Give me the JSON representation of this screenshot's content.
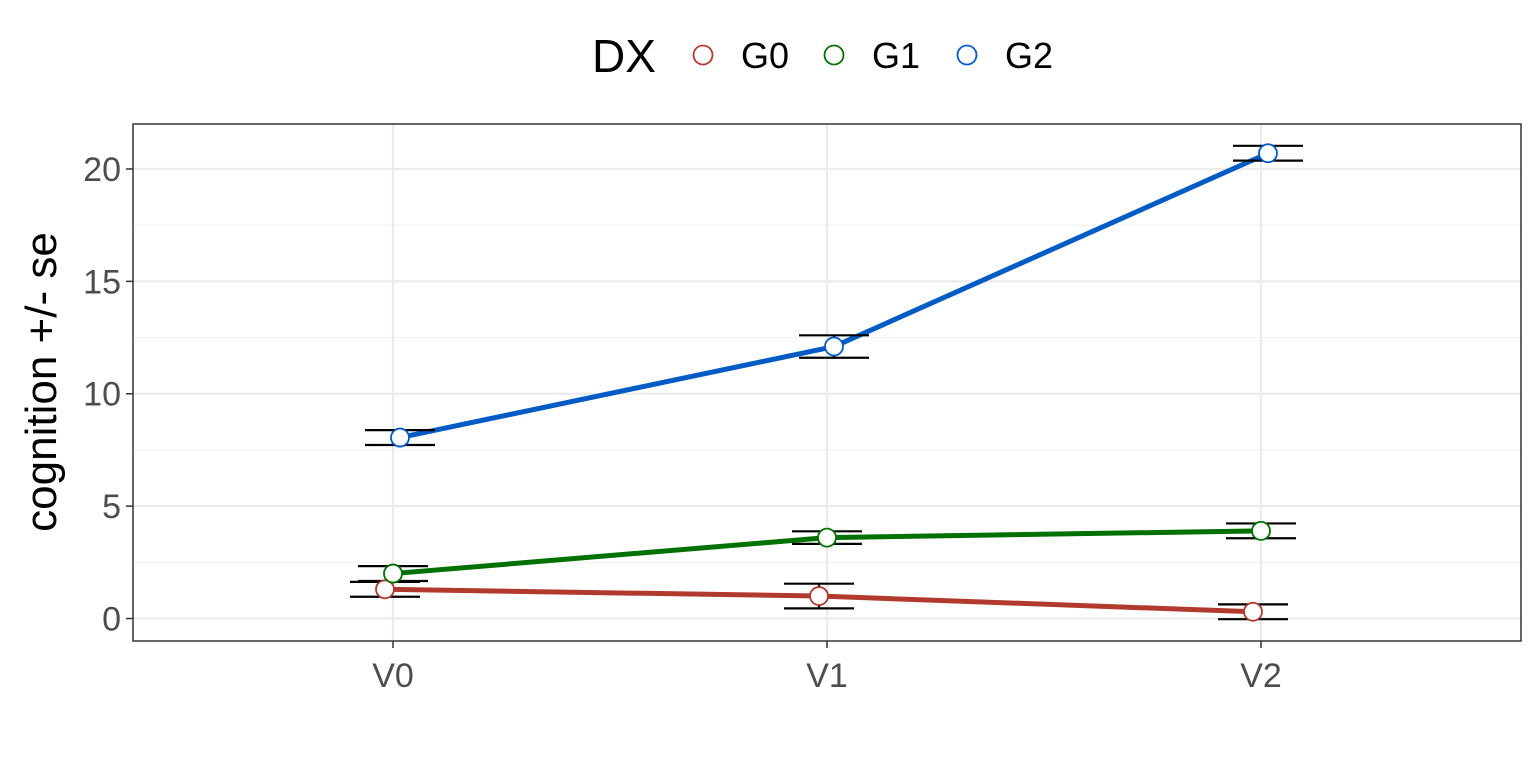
{
  "chart_data": {
    "type": "line",
    "title": "",
    "xlabel": "",
    "ylabel": "cognition  +/- se",
    "categories": [
      "V0",
      "V1",
      "V2"
    ],
    "ylim": [
      -1,
      22
    ],
    "yticks": [
      0,
      5,
      10,
      15,
      20
    ],
    "grid": true,
    "legend": {
      "title": "DX",
      "placement": "top"
    },
    "series": [
      {
        "name": "G0",
        "color": "#b03a2e",
        "values": [
          1.3,
          1.0,
          0.3
        ],
        "se": [
          0.33,
          0.55,
          0.33
        ]
      },
      {
        "name": "G1",
        "color": "#007000",
        "values": [
          2.0,
          3.6,
          3.9
        ],
        "se": [
          0.33,
          0.28,
          0.33
        ]
      },
      {
        "name": "G2",
        "color": "#005bc5",
        "values": [
          8.05,
          12.1,
          20.7
        ],
        "se": [
          0.33,
          0.5,
          0.33
        ]
      }
    ]
  }
}
